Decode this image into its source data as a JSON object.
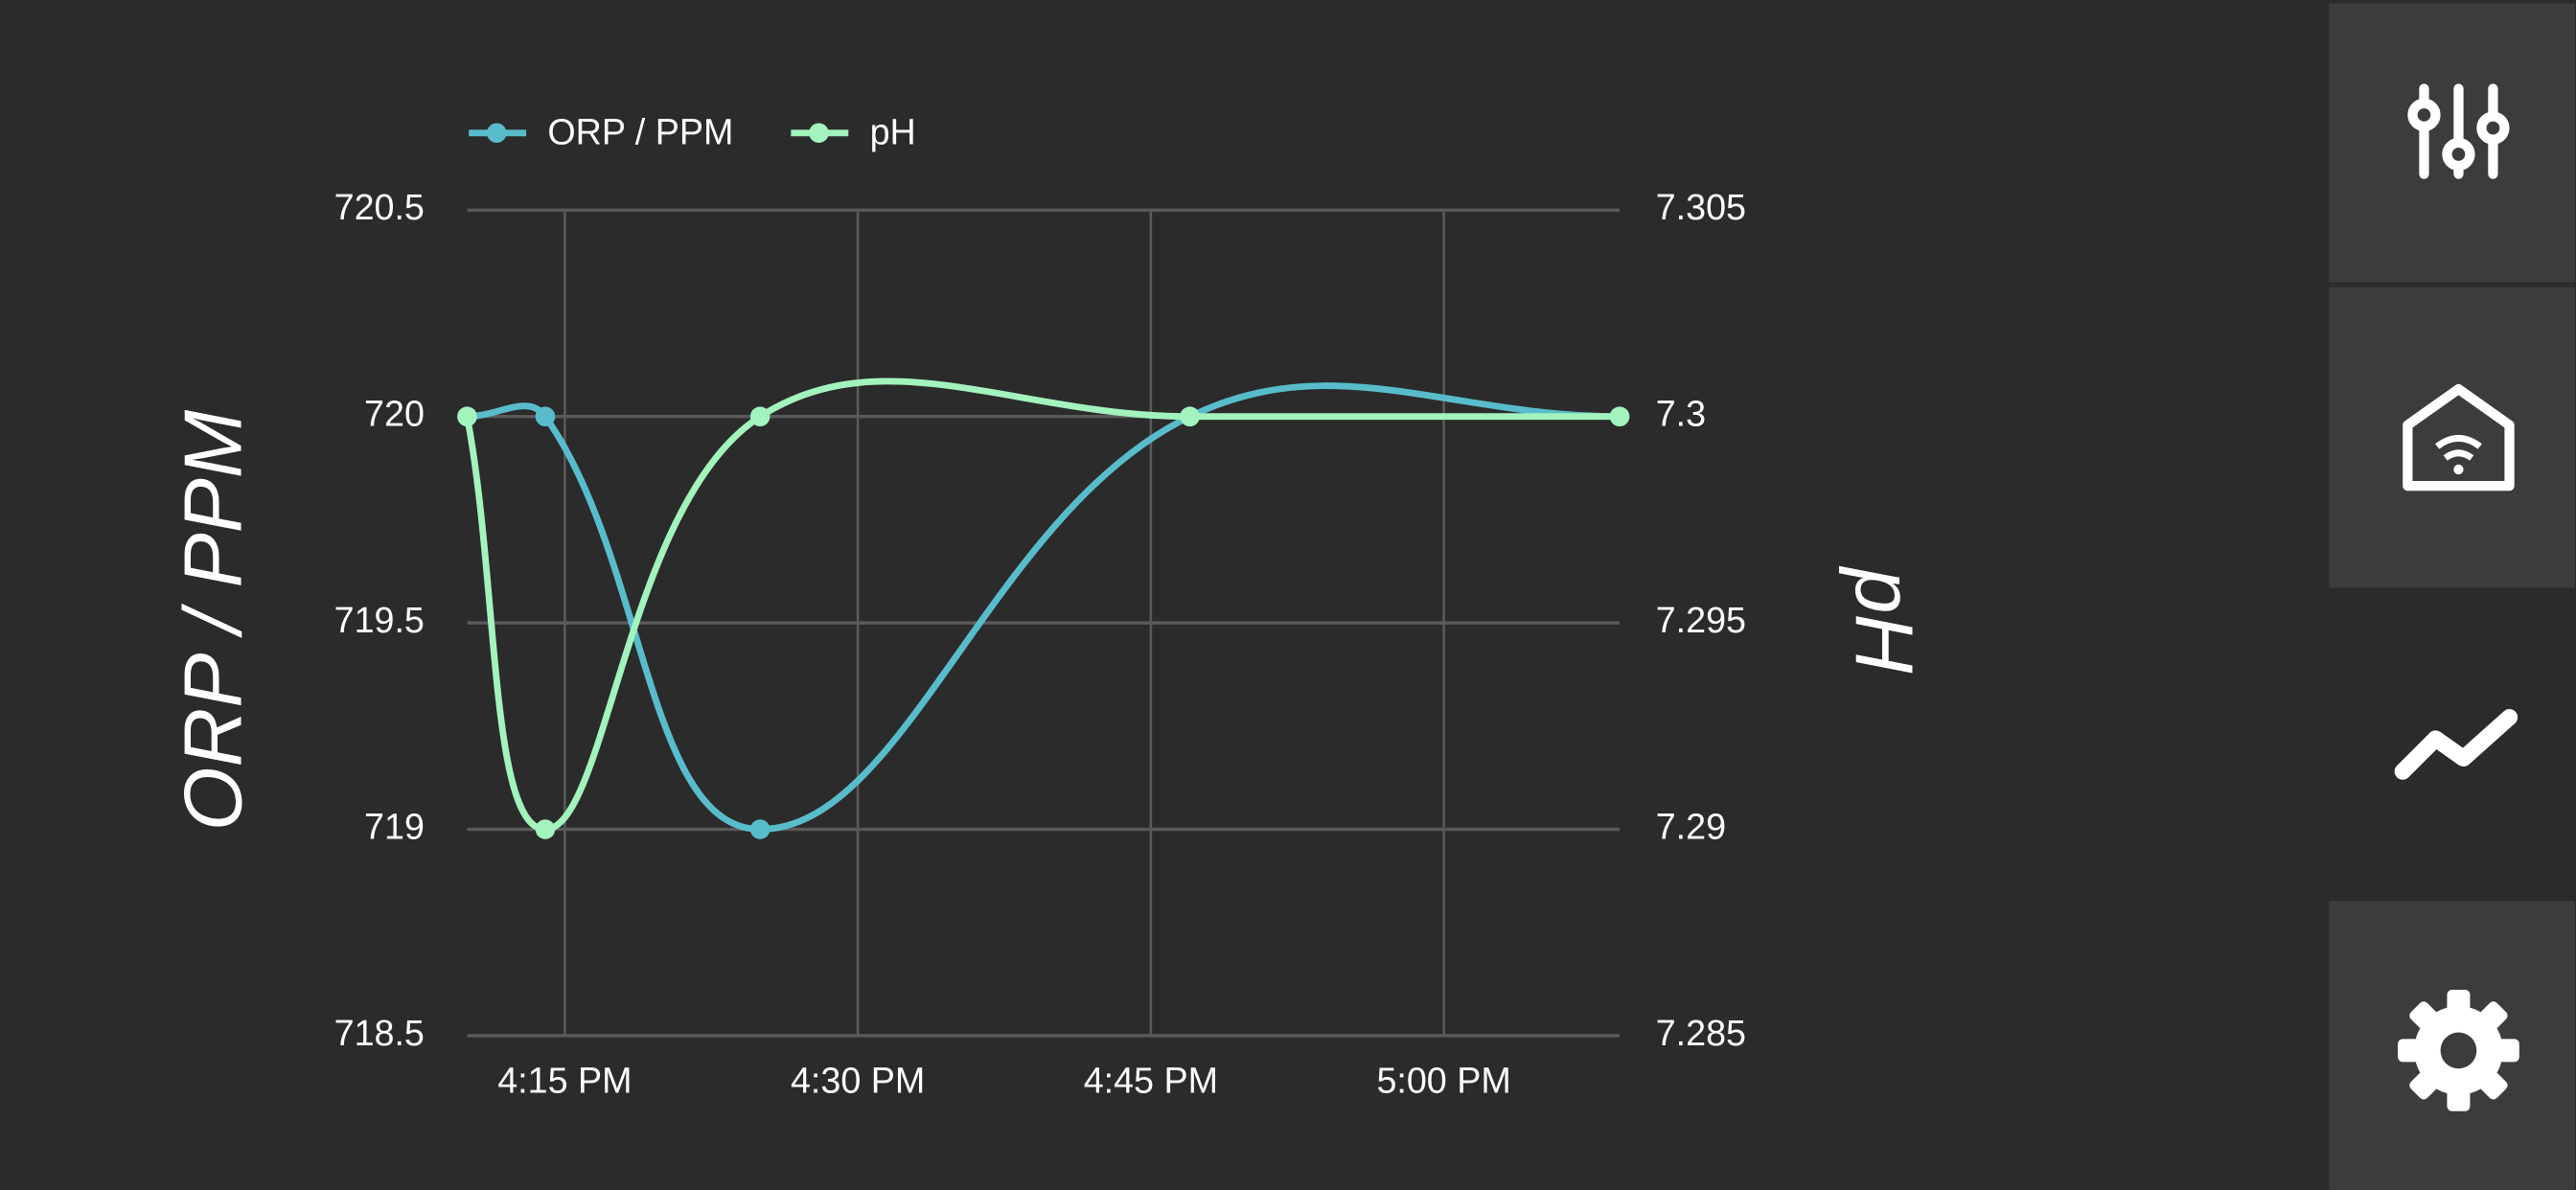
{
  "chart_data": {
    "type": "line",
    "x": [
      970,
      974,
      985,
      1007,
      1029
    ],
    "xlim": [
      970,
      1029
    ],
    "xticks": [
      {
        "value": 975,
        "label": "4:15 PM"
      },
      {
        "value": 990,
        "label": "4:30 PM"
      },
      {
        "value": 1005,
        "label": "4:45 PM"
      },
      {
        "value": 1020,
        "label": "5:00 PM"
      }
    ],
    "ylabel": "ORP / PPM",
    "y2label": "pH",
    "ylim": [
      718.5,
      720.5
    ],
    "yticks": [
      718.5,
      719,
      719.5,
      720,
      720.5
    ],
    "y2lim": [
      7.285,
      7.305
    ],
    "y2ticks": [
      7.285,
      7.29,
      7.295,
      7.3,
      7.305
    ],
    "grid": true,
    "legend": "top",
    "series": [
      {
        "name": "ORP / PPM",
        "color": "#58bccb",
        "values": [
          720,
          720,
          719,
          720,
          720
        ]
      },
      {
        "name": "pH",
        "color": "#a2f3bd",
        "axis": "y2",
        "values": [
          7.3,
          7.29,
          7.3,
          7.3,
          7.3
        ]
      }
    ]
  }
}
